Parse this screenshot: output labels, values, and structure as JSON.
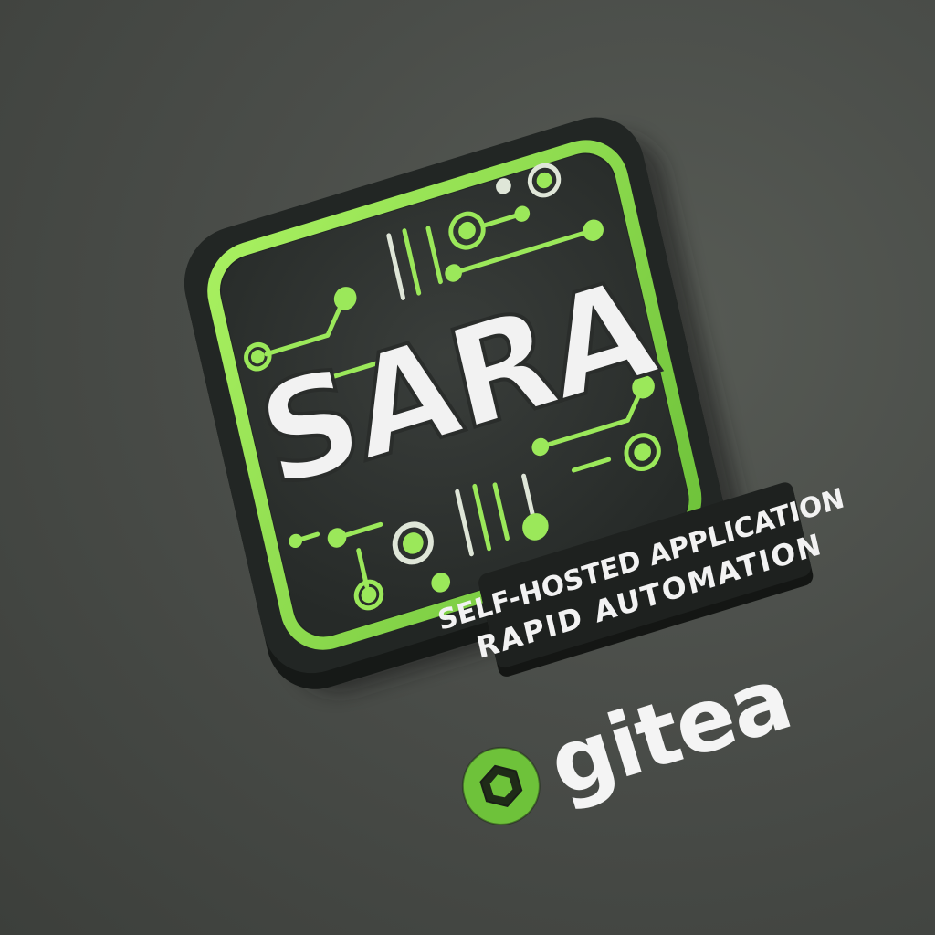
{
  "logo": {
    "wordmark": "SARA",
    "tagline_line1": "SELF-HOSTED APPLICATION",
    "tagline_line2": "RAPID AUTOMATION"
  },
  "brand": {
    "name": "gitea"
  },
  "colors": {
    "background": "#4a4d49",
    "tile_face": "#2f3331",
    "tile_edge": "#1c1f1d",
    "accent_green": "#8ee04a",
    "text_white": "#f2f2f2"
  },
  "icons": [
    "circuit-board-icon",
    "gitea-hexagon-icon"
  ]
}
